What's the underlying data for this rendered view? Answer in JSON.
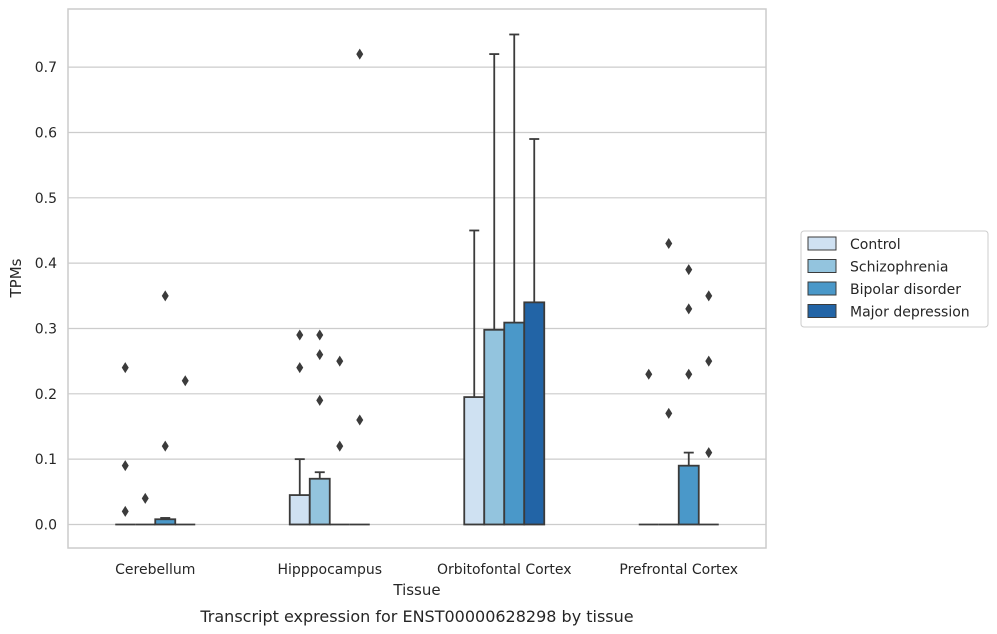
{
  "chart_data": {
    "type": "bar",
    "title": "",
    "caption": "Transcript expression for ENST00000628298 by tissue",
    "xlabel": "Tissue",
    "ylabel": "TPMs",
    "ylim": [
      -0.036,
      0.789
    ],
    "yticks": [
      0.0,
      0.1,
      0.2,
      0.3,
      0.4,
      0.5,
      0.6,
      0.7
    ],
    "ytick_labels": [
      "0.0",
      "0.1",
      "0.2",
      "0.3",
      "0.4",
      "0.5",
      "0.6",
      "0.7"
    ],
    "grid": true,
    "legend_position": "right",
    "categories": [
      "Cerebellum",
      "Hipppocampus",
      "Orbitofontal Cortex",
      "Prefrontal Cortex"
    ],
    "series": [
      {
        "name": "Control",
        "color": "#cfe1f2",
        "values": [
          0.0,
          0.045,
          0.195,
          0.0
        ],
        "upper": [
          0.0,
          0.1,
          0.45,
          0.0
        ],
        "outliers": [
          [
            0.02,
            0.09,
            0.24
          ],
          [
            0.24,
            0.29
          ],
          [],
          [
            0.23
          ]
        ]
      },
      {
        "name": "Schizophrenia",
        "color": "#93c4de",
        "values": [
          0.0,
          0.07,
          0.298,
          0.0
        ],
        "upper": [
          0.0,
          0.08,
          0.72,
          0.0
        ],
        "outliers": [
          [
            0.04
          ],
          [
            0.19,
            0.26,
            0.29
          ],
          [],
          [
            0.17,
            0.43
          ]
        ]
      },
      {
        "name": "Bipolar disorder",
        "color": "#4a98c9",
        "values": [
          0.008,
          0.0,
          0.309,
          0.09
        ],
        "upper": [
          0.01,
          0.0,
          0.75,
          0.11
        ],
        "outliers": [
          [
            0.12,
            0.35
          ],
          [
            0.12,
            0.25
          ],
          [],
          [
            0.23,
            0.33,
            0.39
          ]
        ]
      },
      {
        "name": "Major depression",
        "color": "#2264a6",
        "values": [
          0.0,
          0.0,
          0.34,
          0.0
        ],
        "upper": [
          0.0,
          0.0,
          0.59,
          0.0
        ],
        "outliers": [
          [
            0.22
          ],
          [
            0.16,
            0.72
          ],
          [],
          [
            0.11,
            0.25,
            0.35
          ]
        ]
      }
    ]
  }
}
